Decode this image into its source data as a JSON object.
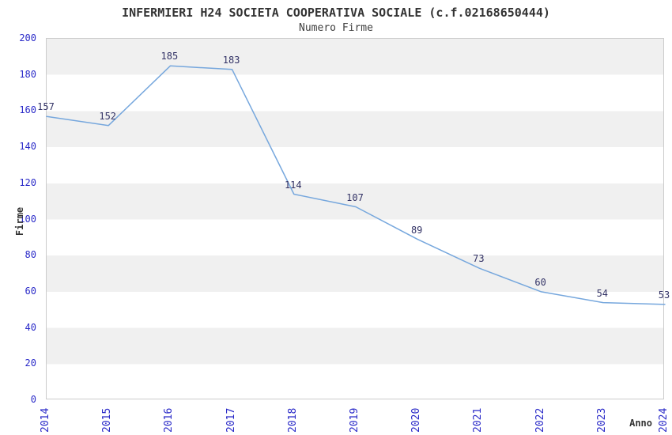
{
  "header": {
    "title": "INFERMIERI H24 SOCIETA COOPERATIVA SOCIALE (c.f.02168650444)",
    "subtitle": "Numero Firme"
  },
  "axes": {
    "y_label": "Firme",
    "x_label": "Anno"
  },
  "colors": {
    "line": "#76a7dd",
    "tick_label": "#2a2ac8",
    "point_label": "#333366",
    "band_gray": "#f0f0f0",
    "plot_border": "#cccccc",
    "title_text": "#333333"
  },
  "chart_data": {
    "type": "line",
    "title": "INFERMIERI H24 SOCIETA COOPERATIVA SOCIALE (c.f.02168650444)",
    "subtitle": "Numero Firme",
    "xlabel": "Anno",
    "ylabel": "Firme",
    "categories": [
      "2014",
      "2015",
      "2016",
      "2017",
      "2018",
      "2019",
      "2020",
      "2021",
      "2022",
      "2023",
      "2024"
    ],
    "values": [
      157,
      152,
      185,
      183,
      114,
      107,
      89,
      73,
      60,
      54,
      53
    ],
    "ylim": [
      0,
      200
    ],
    "ytick_step": 20,
    "yticks": [
      0,
      20,
      40,
      60,
      80,
      100,
      120,
      140,
      160,
      180,
      200
    ],
    "grid": "alternating-horizontal-bands",
    "legend_position": "none",
    "data_labels_visible": true
  }
}
